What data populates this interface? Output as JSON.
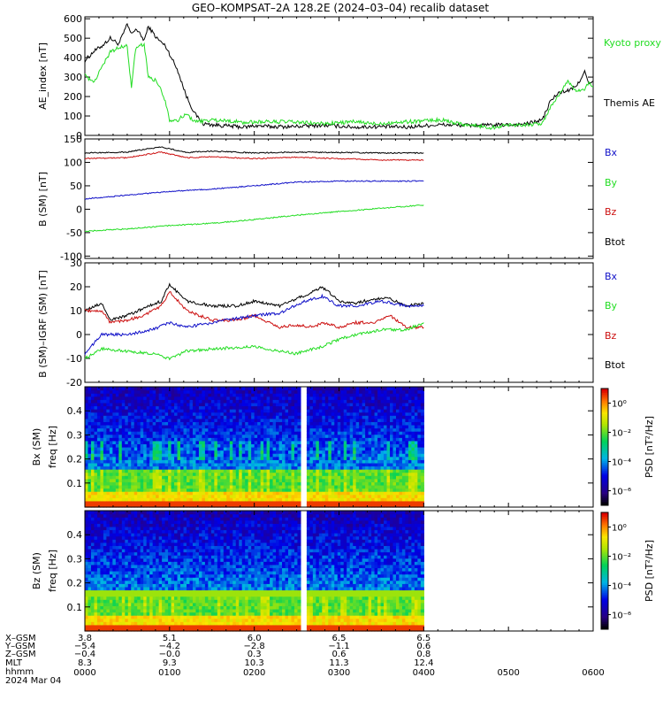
{
  "title": "GEO–KOMPSAT–2A 128.2E (2024–03–04) recalib dataset",
  "x_ticks": [
    "0000",
    "0100",
    "0200",
    "0300",
    "0400",
    "0500",
    "0600"
  ],
  "ephemeris": {
    "labels": [
      "X–GSM",
      "Y–GSM",
      "Z–GSM",
      "MLT",
      "hhmm",
      "2024 Mar 04"
    ],
    "rows": [
      [
        "3.8",
        "5.1",
        "6.0",
        "6.5",
        "6.5"
      ],
      [
        "−5.4",
        "−4.2",
        "−2.8",
        "−1.1",
        "0.6"
      ],
      [
        "−0.4",
        "−0.0",
        "0.3",
        "0.6",
        "0.8"
      ],
      [
        "8.3",
        "9.3",
        "10.3",
        "11.3",
        "12.4"
      ]
    ]
  },
  "colors": {
    "bx": "#1010c8",
    "by": "#22dd22",
    "bz": "#cc1010",
    "btot": "#000000",
    "ae_kyoto": "#22dd22",
    "ae_themis": "#000000"
  },
  "chart_data": [
    {
      "type": "line",
      "title": "GEO–KOMPSAT–2A 128.2E (2024–03–04) recalib dataset",
      "ylabel": "AE_index [nT]",
      "ylim": [
        0,
        610
      ],
      "yticks": [
        0,
        100,
        200,
        300,
        400,
        500,
        600
      ],
      "x_hours": [
        0,
        6
      ],
      "legend": [
        "Kyoto proxy AE",
        "Themis AE"
      ],
      "series": [
        {
          "name": "Themis AE",
          "color": "#000000",
          "x": [
            0,
            0.1,
            0.2,
            0.3,
            0.4,
            0.5,
            0.55,
            0.6,
            0.7,
            0.75,
            0.85,
            0.95,
            1.0,
            1.1,
            1.2,
            1.3,
            1.4,
            1.5,
            1.7,
            1.9,
            2.0,
            2.2,
            2.4,
            2.6,
            2.8,
            3.0,
            3.2,
            3.4,
            3.6,
            3.8,
            4.0,
            4.2,
            4.5,
            4.8,
            5.0,
            5.2,
            5.4,
            5.5,
            5.6,
            5.7,
            5.8,
            5.9,
            5.95,
            6.0
          ],
          "y": [
            385,
            430,
            460,
            500,
            470,
            570,
            520,
            550,
            490,
            560,
            500,
            460,
            420,
            330,
            200,
            110,
            60,
            55,
            48,
            42,
            50,
            45,
            45,
            48,
            52,
            48,
            42,
            45,
            45,
            42,
            50,
            55,
            52,
            52,
            55,
            58,
            80,
            180,
            220,
            230,
            250,
            330,
            260,
            280
          ]
        },
        {
          "name": "Kyoto proxy AE",
          "color": "#22dd22",
          "x": [
            0,
            0.1,
            0.2,
            0.3,
            0.4,
            0.5,
            0.55,
            0.6,
            0.7,
            0.75,
            0.85,
            0.95,
            1.0,
            1.1,
            1.2,
            1.3,
            1.5,
            1.7,
            1.9,
            2.0,
            2.2,
            2.4,
            2.6,
            2.8,
            3.0,
            3.2,
            3.4,
            3.6,
            3.8,
            4.0,
            4.2,
            4.5,
            4.8,
            5.0,
            5.2,
            5.4,
            5.5,
            5.6,
            5.7,
            5.8,
            5.9,
            5.95,
            6.0
          ],
          "y": [
            310,
            270,
            350,
            430,
            450,
            460,
            240,
            450,
            470,
            300,
            280,
            180,
            80,
            80,
            110,
            70,
            80,
            75,
            65,
            70,
            70,
            70,
            65,
            60,
            65,
            70,
            60,
            65,
            70,
            75,
            80,
            55,
            40,
            55,
            55,
            60,
            150,
            210,
            280,
            230,
            240,
            270,
            250
          ]
        }
      ]
    },
    {
      "type": "line",
      "ylabel": "B (SM) [nT]",
      "ylim": [
        -105,
        150
      ],
      "yticks": [
        -100,
        -50,
        0,
        50,
        100,
        150
      ],
      "x_hours": [
        0,
        4
      ],
      "legend": [
        "Bx",
        "By",
        "Bz",
        "Btot"
      ],
      "series": [
        {
          "name": "Btot",
          "color": "#000000",
          "x": [
            0,
            0.5,
            0.9,
            1.2,
            1.5,
            2.0,
            2.5,
            3.0,
            3.5,
            4.0
          ],
          "y": [
            120,
            122,
            133,
            121,
            124,
            120,
            122,
            121,
            120,
            120
          ]
        },
        {
          "name": "Bz",
          "color": "#cc1010",
          "x": [
            0,
            0.5,
            0.9,
            1.2,
            1.5,
            2.0,
            2.5,
            3.0,
            3.5,
            4.0
          ],
          "y": [
            108,
            110,
            122,
            110,
            112,
            108,
            111,
            108,
            105,
            105
          ]
        },
        {
          "name": "Bx",
          "color": "#1010c8",
          "x": [
            0,
            0.5,
            1.0,
            1.5,
            2.0,
            2.5,
            3.0,
            3.5,
            4.0
          ],
          "y": [
            22,
            30,
            38,
            43,
            50,
            58,
            60,
            60,
            60
          ]
        },
        {
          "name": "By",
          "color": "#22dd22",
          "x": [
            0,
            0.5,
            1.0,
            1.5,
            2.0,
            2.5,
            3.0,
            3.5,
            4.0
          ],
          "y": [
            -47,
            -42,
            -35,
            -30,
            -22,
            -13,
            -5,
            2,
            9
          ]
        }
      ]
    },
    {
      "type": "line",
      "ylabel": "B (SM)–IGRF (SM) [nT]",
      "ylim": [
        -20,
        30
      ],
      "yticks": [
        -20,
        -10,
        0,
        10,
        20,
        30
      ],
      "x_hours": [
        0,
        4
      ],
      "legend": [
        "Bx",
        "By",
        "Bz",
        "Btot"
      ],
      "series": [
        {
          "name": "Btot",
          "color": "#000000",
          "x": [
            0,
            0.2,
            0.3,
            0.5,
            0.7,
            0.9,
            1.0,
            1.2,
            1.5,
            1.8,
            2.0,
            2.3,
            2.5,
            2.7,
            2.8,
            3.0,
            3.2,
            3.4,
            3.6,
            3.8,
            4.0
          ],
          "y": [
            10,
            13,
            6,
            8,
            11,
            14,
            21,
            14,
            12,
            12,
            14,
            12,
            15,
            18,
            20,
            14,
            13,
            15,
            15,
            12,
            13
          ]
        },
        {
          "name": "Bz",
          "color": "#cc1010",
          "x": [
            0,
            0.2,
            0.3,
            0.5,
            0.7,
            0.9,
            1.0,
            1.2,
            1.5,
            1.8,
            2.0,
            2.3,
            2.5,
            2.7,
            2.8,
            3.0,
            3.2,
            3.4,
            3.6,
            3.8,
            4.0
          ],
          "y": [
            10,
            10,
            5,
            6,
            8,
            12,
            18,
            10,
            6,
            6,
            8,
            3,
            4,
            3,
            5,
            3,
            5,
            5,
            8,
            3,
            3
          ]
        },
        {
          "name": "Bx",
          "color": "#1010c8",
          "x": [
            0,
            0.2,
            0.5,
            0.8,
            1.0,
            1.2,
            1.5,
            2.0,
            2.3,
            2.6,
            2.8,
            3.0,
            3.2,
            3.5,
            3.8,
            4.0
          ],
          "y": [
            -8,
            0,
            0,
            2,
            5,
            3,
            5,
            8,
            9,
            14,
            16,
            12,
            12,
            14,
            12,
            12
          ]
        },
        {
          "name": "By",
          "color": "#22dd22",
          "x": [
            0,
            0.2,
            0.5,
            0.8,
            1.0,
            1.2,
            1.5,
            2.0,
            2.3,
            2.5,
            2.8,
            3.0,
            3.2,
            3.5,
            3.8,
            4.0
          ],
          "y": [
            -10,
            -6,
            -7,
            -8,
            -10,
            -7,
            -6,
            -5,
            -7,
            -8,
            -5,
            -2,
            0,
            2,
            2,
            5
          ]
        }
      ]
    },
    {
      "type": "heatmap",
      "ylabel": "Bx (SM)",
      "ylabel2": "freq [Hz]",
      "ylim": [
        0,
        0.5
      ],
      "yticks": [
        0.1,
        0.2,
        0.3,
        0.4
      ],
      "x_hours": [
        0,
        4
      ],
      "data_gap_hours": [
        2.55,
        2.63
      ],
      "colorbar": {
        "label": "PSD [nT²/Hz]",
        "ticks": [
          "10⁰",
          "10⁻²",
          "10⁻⁴",
          "10⁻⁶"
        ],
        "log_range": [
          -7,
          1
        ]
      }
    },
    {
      "type": "heatmap",
      "ylabel": "Bz (SM)",
      "ylabel2": "freq [Hz]",
      "ylim": [
        0,
        0.5
      ],
      "yticks": [
        0.1,
        0.2,
        0.3,
        0.4
      ],
      "x_hours": [
        0,
        4
      ],
      "data_gap_hours": [
        2.55,
        2.63
      ],
      "colorbar": {
        "label": "PSD [nT²/Hz]",
        "ticks": [
          "10⁰",
          "10⁻²",
          "10⁻⁴",
          "10⁻⁶"
        ],
        "log_range": [
          -7,
          1
        ]
      }
    }
  ]
}
